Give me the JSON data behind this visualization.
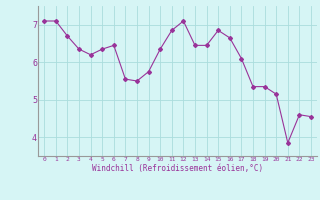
{
  "x": [
    0,
    1,
    2,
    3,
    4,
    5,
    6,
    7,
    8,
    9,
    10,
    11,
    12,
    13,
    14,
    15,
    16,
    17,
    18,
    19,
    20,
    21,
    22,
    23
  ],
  "y": [
    7.1,
    7.1,
    6.7,
    6.35,
    6.2,
    6.35,
    6.45,
    5.55,
    5.5,
    5.75,
    6.35,
    6.85,
    7.1,
    6.45,
    6.45,
    6.85,
    6.65,
    6.1,
    5.35,
    5.35,
    5.15,
    3.85,
    4.6,
    4.55
  ],
  "line_color": "#993399",
  "marker": "D",
  "marker_size": 2,
  "bg_color": "#d6f5f5",
  "grid_color": "#aadddd",
  "xlabel": "Windchill (Refroidissement éolien,°C)",
  "ylim": [
    3.5,
    7.5
  ],
  "xlim": [
    -0.5,
    23.5
  ],
  "yticks": [
    4,
    5,
    6,
    7
  ],
  "xticks": [
    0,
    1,
    2,
    3,
    4,
    5,
    6,
    7,
    8,
    9,
    10,
    11,
    12,
    13,
    14,
    15,
    16,
    17,
    18,
    19,
    20,
    21,
    22,
    23
  ]
}
